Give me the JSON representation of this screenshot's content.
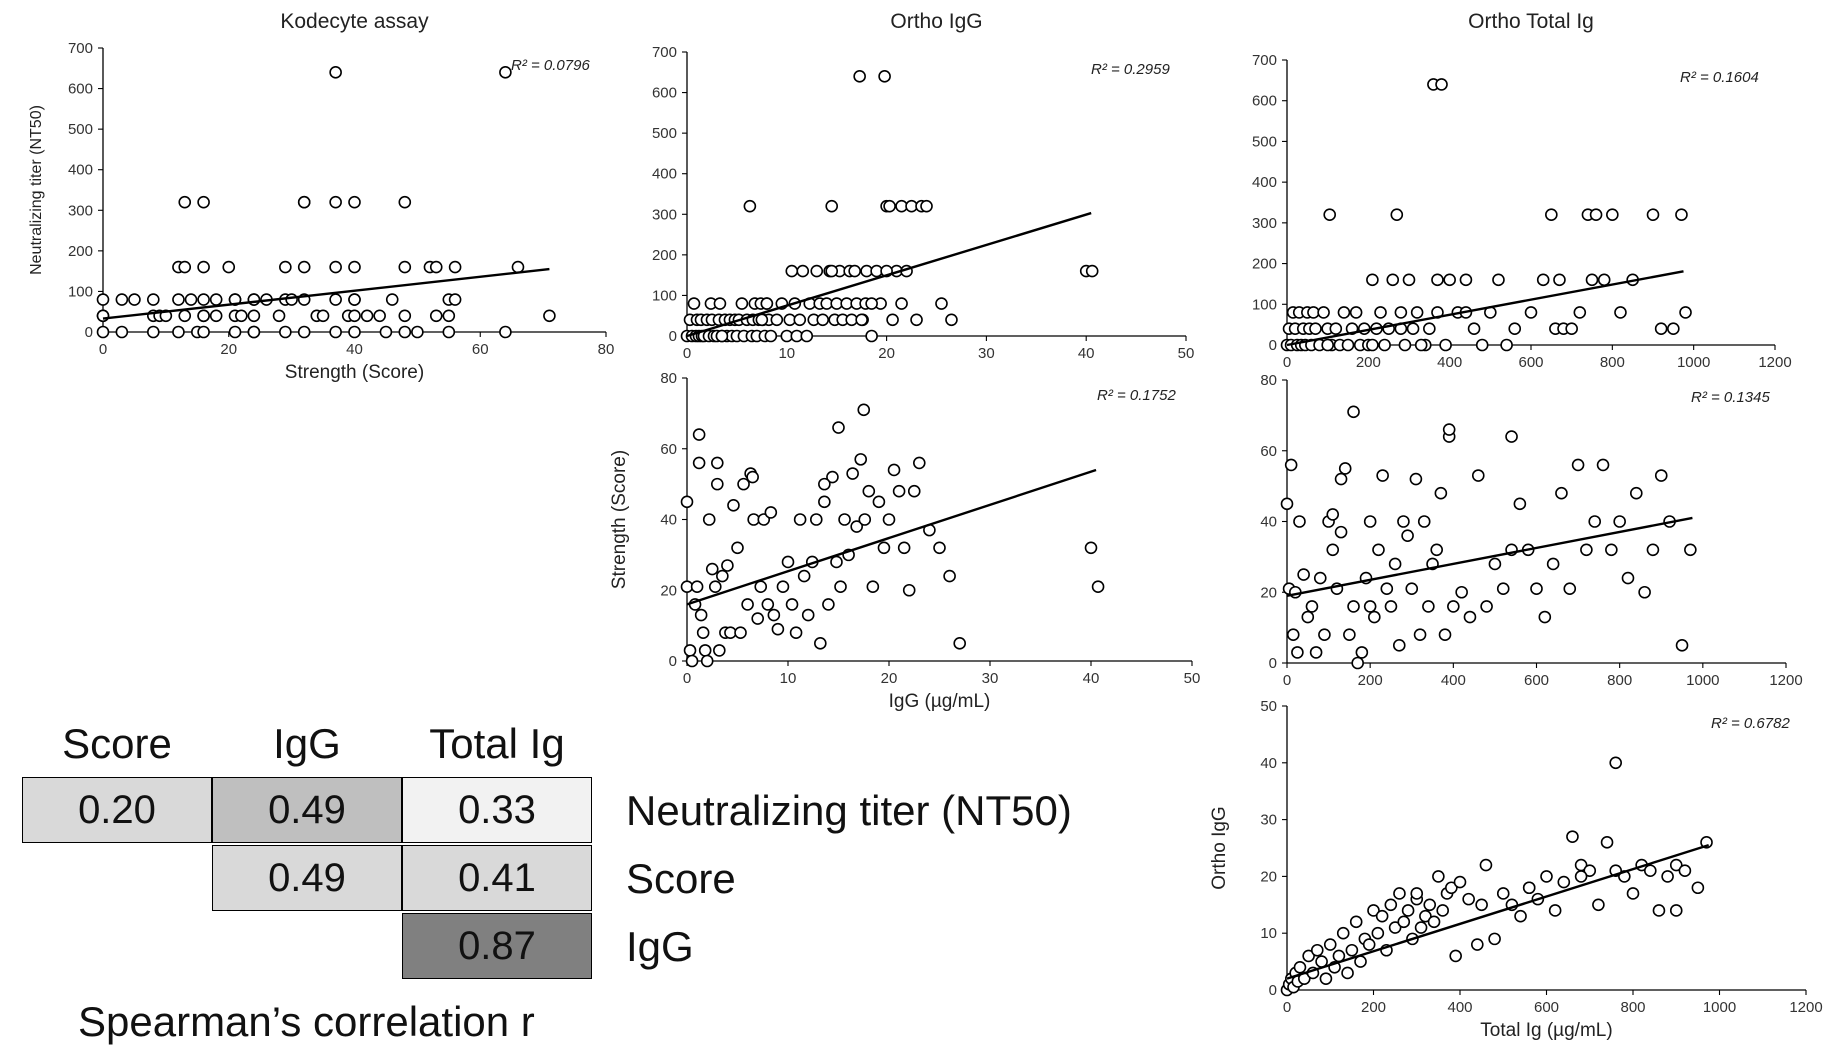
{
  "chart_data": [
    {
      "id": "kodecyte_nt50",
      "type": "scatter",
      "title": "Kodecyte assay",
      "xlabel": "Strength (Score)",
      "ylabel": "Neutralizing titer (NT50)",
      "xlim": [
        0,
        80
      ],
      "ylim": [
        0,
        700
      ],
      "xticks": [
        0,
        20,
        40,
        60,
        80
      ],
      "yticks": [
        0,
        100,
        200,
        300,
        400,
        500,
        600,
        700
      ],
      "r2": "R² = 0.0796",
      "trend": {
        "x": [
          0,
          71
        ],
        "y": [
          33,
          155
        ]
      },
      "x": [
        0,
        0,
        0,
        0,
        3,
        3,
        5,
        8,
        8,
        8,
        9,
        10,
        12,
        12,
        12,
        13,
        13,
        13,
        14,
        15,
        16,
        16,
        16,
        16,
        16,
        16,
        18,
        20,
        21,
        21,
        21,
        21,
        22,
        24,
        24,
        24,
        24,
        24,
        26,
        28,
        29,
        29,
        29,
        32,
        32,
        32,
        32,
        32,
        34,
        35,
        37,
        37,
        37,
        37,
        37,
        39,
        40,
        40,
        40,
        40,
        40,
        40,
        42,
        44,
        45,
        46,
        48,
        48,
        48,
        48,
        50,
        52,
        53,
        53,
        55,
        55,
        55,
        56,
        56,
        64,
        64,
        66,
        71,
        30,
        18
      ],
      "y": [
        0,
        40,
        80,
        40,
        0,
        80,
        80,
        40,
        80,
        0,
        40,
        40,
        160,
        80,
        0,
        320,
        160,
        40,
        80,
        0,
        320,
        160,
        80,
        40,
        0,
        40,
        40,
        160,
        80,
        40,
        0,
        80,
        40,
        80,
        0,
        80,
        40,
        0,
        80,
        40,
        160,
        80,
        0,
        320,
        320,
        160,
        80,
        0,
        40,
        40,
        640,
        320,
        160,
        80,
        0,
        40,
        320,
        160,
        80,
        40,
        80,
        0,
        40,
        40,
        0,
        80,
        320,
        160,
        40,
        0,
        0,
        160,
        160,
        40,
        0,
        40,
        80,
        160,
        80,
        0,
        640,
        160,
        40,
        80,
        80
      ]
    },
    {
      "id": "orthoigg_nt50",
      "type": "scatter",
      "title": "Ortho IgG",
      "xlabel": "",
      "ylabel": "",
      "xlim": [
        0,
        50
      ],
      "ylim": [
        0,
        700
      ],
      "xticks": [
        0,
        10,
        20,
        30,
        40,
        50
      ],
      "yticks": [
        0,
        100,
        200,
        300,
        400,
        500,
        600,
        700
      ],
      "r2": "R² = 0.2959",
      "trend": {
        "x": [
          0,
          40.5
        ],
        "y": [
          0,
          303
        ]
      },
      "x": [
        0,
        0.3,
        0.5,
        0.7,
        0.9,
        1,
        1.2,
        1.4,
        1.5,
        1.7,
        2,
        2.2,
        2.4,
        2.5,
        2.7,
        3,
        3.2,
        3.3,
        3.5,
        3.8,
        4,
        4.3,
        4.5,
        4.8,
        5,
        5.2,
        5.5,
        5.7,
        6,
        6.3,
        6.5,
        6.6,
        6.8,
        7,
        7.2,
        7.4,
        7.6,
        7.8,
        8,
        8.2,
        8.4,
        9,
        9.5,
        10,
        10.3,
        10.5,
        10.8,
        11,
        11.3,
        11.6,
        12,
        12.3,
        12.7,
        13,
        13.3,
        13.6,
        14,
        14.3,
        14.5,
        14.8,
        15,
        15.3,
        15.6,
        16,
        16.3,
        16.5,
        16.8,
        17,
        17.3,
        17.6,
        17.9,
        18,
        18.5,
        19,
        19.4,
        19.8,
        20,
        20.3,
        20.6,
        21,
        21.5,
        22,
        22.5,
        23,
        23.5,
        24,
        25.5,
        26.5,
        40,
        40.6,
        17.5,
        20,
        14.5,
        18.5,
        21.5,
        8,
        7.5,
        3.5
      ],
      "y": [
        0,
        40,
        0,
        80,
        0,
        40,
        0,
        40,
        0,
        0,
        40,
        0,
        80,
        40,
        0,
        0,
        40,
        80,
        0,
        40,
        0,
        40,
        0,
        40,
        0,
        40,
        80,
        0,
        40,
        320,
        0,
        40,
        80,
        0,
        40,
        80,
        40,
        0,
        80,
        40,
        0,
        40,
        80,
        0,
        40,
        160,
        80,
        0,
        40,
        160,
        0,
        80,
        40,
        160,
        80,
        40,
        80,
        160,
        320,
        40,
        80,
        160,
        40,
        80,
        160,
        40,
        160,
        80,
        640,
        40,
        80,
        160,
        0,
        160,
        80,
        640,
        320,
        320,
        40,
        160,
        320,
        160,
        320,
        40,
        320,
        320,
        80,
        40,
        160,
        160,
        40,
        160,
        160,
        80,
        80,
        80,
        40,
        0
      ]
    },
    {
      "id": "orthototal_nt50",
      "type": "scatter",
      "title": "Ortho Total Ig",
      "xlabel": "",
      "ylabel": "",
      "xlim": [
        0,
        1200
      ],
      "ylim": [
        0,
        700
      ],
      "xticks": [
        0,
        200,
        400,
        600,
        800,
        1000,
        1200
      ],
      "yticks": [
        0,
        100,
        200,
        300,
        400,
        500,
        600,
        700
      ],
      "r2": "R² = 0.1604",
      "trend": {
        "x": [
          0,
          975
        ],
        "y": [
          0,
          181
        ]
      },
      "x": [
        0,
        5,
        10,
        15,
        20,
        25,
        30,
        35,
        40,
        45,
        50,
        55,
        60,
        65,
        70,
        80,
        90,
        100,
        105,
        110,
        120,
        130,
        140,
        150,
        160,
        170,
        180,
        190,
        200,
        210,
        220,
        230,
        240,
        250,
        260,
        270,
        280,
        290,
        300,
        310,
        320,
        340,
        350,
        360,
        370,
        380,
        390,
        400,
        420,
        440,
        460,
        480,
        500,
        520,
        540,
        560,
        600,
        630,
        650,
        660,
        670,
        680,
        700,
        720,
        740,
        760,
        780,
        800,
        820,
        850,
        900,
        920,
        950,
        970,
        980,
        330,
        370,
        280,
        100,
        750,
        210,
        440
      ],
      "y": [
        0,
        40,
        0,
        80,
        40,
        0,
        80,
        0,
        40,
        0,
        80,
        40,
        0,
        80,
        40,
        0,
        80,
        40,
        320,
        0,
        40,
        0,
        80,
        0,
        40,
        80,
        0,
        40,
        0,
        160,
        40,
        80,
        0,
        40,
        160,
        320,
        80,
        0,
        160,
        40,
        80,
        0,
        40,
        640,
        160,
        640,
        0,
        160,
        80,
        160,
        40,
        0,
        80,
        160,
        0,
        40,
        80,
        160,
        320,
        40,
        160,
        40,
        40,
        80,
        320,
        320,
        160,
        320,
        80,
        160,
        320,
        40,
        40,
        320,
        80,
        0,
        80,
        40,
        0,
        160,
        0,
        80
      ]
    },
    {
      "id": "orthoigg_strength",
      "type": "scatter",
      "title": "",
      "xlabel": "IgG (µg/mL)",
      "ylabel": "Strength (Score)",
      "xlim": [
        0,
        50
      ],
      "ylim": [
        0,
        80
      ],
      "xticks": [
        0,
        10,
        20,
        30,
        40,
        50
      ],
      "yticks": [
        0,
        20,
        40,
        60,
        80
      ],
      "r2": "R² = 0.1752",
      "trend": {
        "x": [
          0,
          40.5
        ],
        "y": [
          16,
          54
        ]
      },
      "x": [
        0,
        0,
        0.3,
        0.5,
        0.8,
        1,
        1.2,
        1.4,
        1.6,
        1.8,
        2,
        2.2,
        2.5,
        2.8,
        3,
        3.2,
        3.5,
        3.8,
        4,
        4.3,
        4.6,
        5,
        5.3,
        5.6,
        6,
        6.3,
        6.6,
        7,
        7.3,
        7.6,
        8,
        8.3,
        8.6,
        9,
        9.5,
        10,
        10.4,
        10.8,
        11.2,
        11.6,
        12,
        12.4,
        12.8,
        13.2,
        13.6,
        14,
        14.4,
        14.8,
        15.2,
        15.6,
        16,
        16.4,
        16.8,
        17.2,
        17.6,
        18,
        18.4,
        19,
        19.5,
        20,
        20.5,
        21,
        21.5,
        22,
        22.5,
        23,
        24,
        25,
        27,
        26,
        40,
        40.7,
        1.2,
        3,
        6.5,
        13.6,
        15,
        17.5
      ],
      "y": [
        45,
        21,
        3,
        0,
        16,
        21,
        56,
        13,
        8,
        3,
        0,
        40,
        26,
        21,
        50,
        3,
        24,
        8,
        27,
        8,
        44,
        32,
        8,
        50,
        16,
        53,
        40,
        12,
        21,
        40,
        16,
        42,
        13,
        9,
        21,
        28,
        16,
        8,
        40,
        24,
        13,
        28,
        40,
        5,
        45,
        16,
        52,
        28,
        21,
        40,
        30,
        53,
        38,
        57,
        40,
        48,
        21,
        45,
        32,
        40,
        54,
        48,
        32,
        20,
        48,
        56,
        37,
        32,
        5,
        24,
        32,
        21,
        64,
        56,
        52,
        50,
        66,
        71
      ]
    },
    {
      "id": "orthototal_strength",
      "type": "scatter",
      "title": "",
      "xlabel": "",
      "ylabel": "",
      "xlim": [
        0,
        1200
      ],
      "ylim": [
        0,
        80
      ],
      "xticks": [
        0,
        200,
        400,
        600,
        800,
        1000,
        1200
      ],
      "yticks": [
        0,
        20,
        40,
        60,
        80
      ],
      "r2": "R² = 0.1345",
      "trend": {
        "x": [
          0,
          975
        ],
        "y": [
          19,
          41
        ]
      },
      "x": [
        0,
        5,
        10,
        15,
        20,
        25,
        30,
        40,
        50,
        60,
        70,
        80,
        90,
        100,
        110,
        120,
        130,
        140,
        150,
        160,
        170,
        180,
        190,
        200,
        210,
        220,
        230,
        240,
        250,
        260,
        270,
        280,
        290,
        300,
        310,
        320,
        330,
        340,
        350,
        360,
        370,
        380,
        390,
        400,
        420,
        440,
        460,
        480,
        500,
        520,
        540,
        560,
        580,
        600,
        620,
        640,
        660,
        680,
        700,
        720,
        740,
        760,
        780,
        800,
        820,
        840,
        860,
        880,
        900,
        920,
        950,
        970,
        160,
        390,
        540,
        200,
        110,
        130
      ],
      "y": [
        45,
        21,
        56,
        8,
        20,
        3,
        40,
        25,
        13,
        16,
        3,
        24,
        8,
        40,
        32,
        21,
        52,
        55,
        8,
        16,
        0,
        3,
        24,
        40,
        13,
        32,
        53,
        21,
        16,
        28,
        5,
        40,
        36,
        21,
        52,
        8,
        40,
        16,
        28,
        32,
        48,
        8,
        64,
        16,
        20,
        13,
        53,
        16,
        28,
        21,
        64,
        45,
        32,
        21,
        13,
        28,
        48,
        21,
        56,
        32,
        40,
        56,
        32,
        40,
        24,
        48,
        20,
        32,
        53,
        40,
        5,
        32,
        71,
        66,
        32,
        16,
        42,
        37
      ]
    },
    {
      "id": "ortho_total_vs_igg",
      "type": "scatter",
      "title": "",
      "xlabel": "Total Ig (µg/mL)",
      "ylabel": "Ortho IgG",
      "xlim": [
        0,
        1200
      ],
      "ylim": [
        0,
        50
      ],
      "xticks": [
        0,
        200,
        400,
        600,
        800,
        1000,
        1200
      ],
      "yticks": [
        0,
        10,
        20,
        30,
        40,
        50
      ],
      "r2": "R² = 0.6782",
      "trend": {
        "x": [
          0,
          975
        ],
        "y": [
          2,
          25.5
        ]
      },
      "x": [
        0,
        5,
        10,
        15,
        20,
        25,
        30,
        40,
        50,
        60,
        70,
        80,
        90,
        100,
        110,
        120,
        130,
        140,
        150,
        160,
        170,
        180,
        190,
        200,
        210,
        220,
        230,
        240,
        250,
        260,
        270,
        280,
        290,
        300,
        310,
        320,
        330,
        340,
        350,
        360,
        370,
        380,
        390,
        400,
        420,
        440,
        460,
        480,
        500,
        520,
        540,
        560,
        580,
        600,
        620,
        640,
        660,
        680,
        700,
        720,
        740,
        760,
        780,
        800,
        820,
        840,
        860,
        880,
        900,
        920,
        950,
        970,
        760,
        680,
        900,
        560,
        450,
        300
      ],
      "y": [
        0,
        1,
        2,
        0.5,
        3,
        1.5,
        4,
        2,
        6,
        3,
        7,
        5,
        2,
        8,
        4,
        6,
        10,
        3,
        7,
        12,
        5,
        9,
        8,
        14,
        10,
        13,
        7,
        15,
        11,
        17,
        12,
        14,
        9,
        16,
        11,
        13,
        15,
        12,
        20,
        14,
        17,
        18,
        6,
        19,
        16,
        8,
        22,
        9,
        17,
        15,
        13,
        18,
        16,
        20,
        14,
        19,
        27,
        22,
        21,
        15,
        26,
        40,
        20,
        17,
        22,
        21,
        14,
        20,
        22,
        21,
        18,
        26,
        21,
        20,
        14,
        18,
        15,
        17
      ]
    }
  ],
  "spearman": {
    "col_headers": [
      "Score",
      "IgG",
      "Total Ig"
    ],
    "rows": [
      {
        "label": "Neutralizing titer (NT50)",
        "values": [
          "0.20",
          "0.49",
          "0.33"
        ]
      },
      {
        "label": "Score",
        "values": [
          "",
          "0.49",
          "0.41"
        ]
      },
      {
        "label": "IgG",
        "values": [
          "",
          "",
          "0.87"
        ]
      }
    ],
    "cell_colors": {
      "r0c0": "#d9d9d9",
      "r0c1": "#bfbfbf",
      "r0c2": "#f2f2f2",
      "r1c1": "#d9d9d9",
      "r1c2": "#d9d9d9",
      "r2c2": "#808080"
    },
    "caption": "Spearman’s correlation r"
  }
}
